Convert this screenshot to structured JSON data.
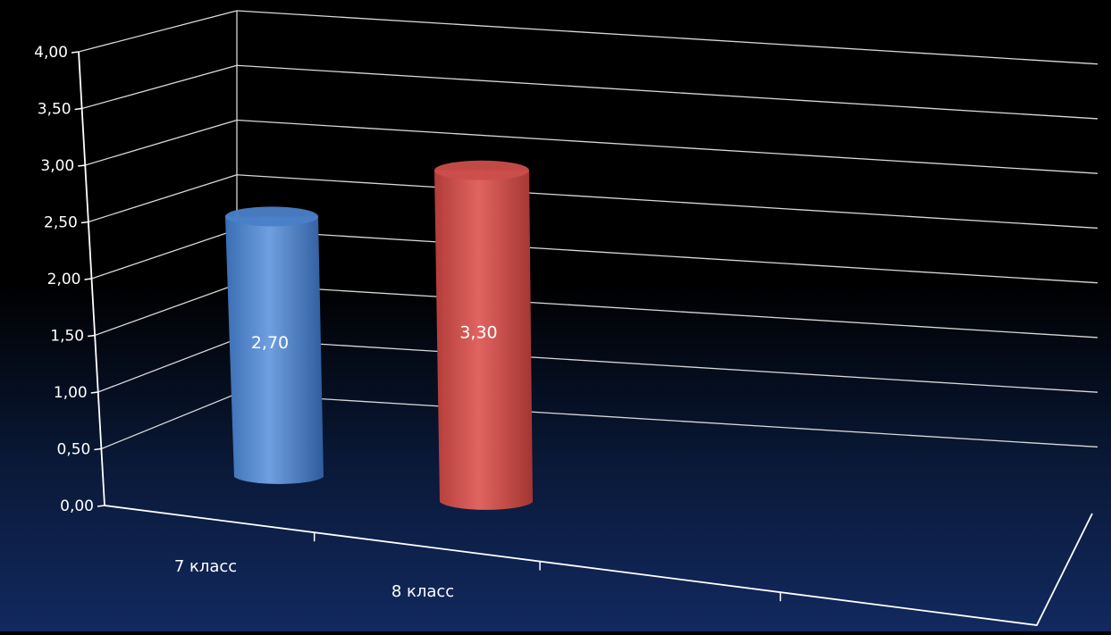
{
  "chart_data": {
    "type": "bar",
    "style": "3d-cylinder",
    "categories": [
      "7 класс",
      "8 класс"
    ],
    "values": [
      2.7,
      3.3
    ],
    "data_labels": [
      "2,70",
      "3,30"
    ],
    "colors": [
      "#4a7fc8",
      "#cc4e4a"
    ],
    "ylim": [
      0,
      4
    ],
    "y_ticks": [
      "0,00",
      "0,50",
      "1,00",
      "1,50",
      "2,00",
      "2,50",
      "3,00",
      "3,50",
      "4,00"
    ],
    "grid": true,
    "legend": "none"
  }
}
